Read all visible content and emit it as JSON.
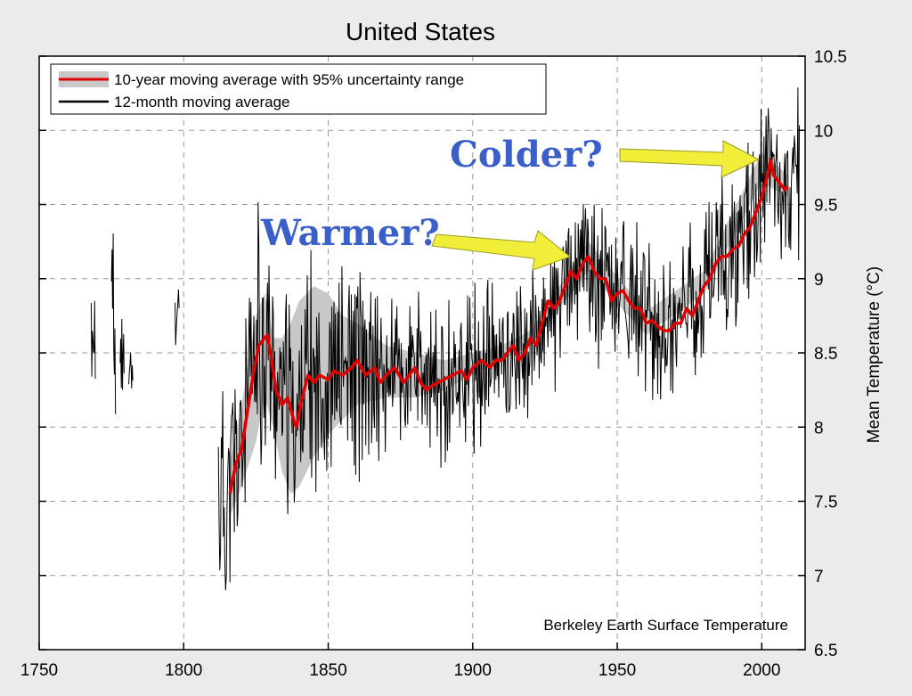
{
  "chart_data": {
    "type": "line",
    "title": "United States",
    "xlabel": "",
    "ylabel": "Mean Temperature (°C)",
    "xlim": [
      1750,
      2015
    ],
    "ylim": [
      6.5,
      10.5
    ],
    "x_ticks": [
      "1750",
      "1800",
      "1850",
      "1900",
      "1950",
      "2000"
    ],
    "y_ticks": [
      "6.5",
      "7",
      "7.5",
      "8",
      "8.5",
      "9",
      "9.5",
      "10",
      "10.5"
    ],
    "grid": true,
    "legend_position": "top-left",
    "credit": "Berkeley Earth Surface Temperature",
    "series": [
      {
        "name": "10-year moving average with 95% uncertainty range",
        "color": "#e00000",
        "x": [
          1816,
          1818,
          1820,
          1822,
          1824,
          1826,
          1828,
          1829,
          1830,
          1832,
          1834,
          1836,
          1838,
          1839,
          1841,
          1843,
          1845,
          1847,
          1850,
          1852,
          1855,
          1858,
          1860,
          1863,
          1866,
          1868,
          1870,
          1873,
          1876,
          1878,
          1880,
          1882,
          1884,
          1886,
          1888,
          1890,
          1893,
          1896,
          1898,
          1900,
          1903,
          1906,
          1908,
          1910,
          1912,
          1914,
          1916,
          1918,
          1920,
          1922,
          1924,
          1926,
          1928,
          1930,
          1932,
          1934,
          1936,
          1938,
          1940,
          1942,
          1944,
          1946,
          1948,
          1950,
          1952,
          1954,
          1956,
          1958,
          1960,
          1962,
          1964,
          1966,
          1968,
          1970,
          1972,
          1974,
          1976,
          1978,
          1980,
          1982,
          1984,
          1986,
          1988,
          1990,
          1992,
          1994,
          1996,
          1998,
          2000,
          2002,
          2003,
          2004,
          2006,
          2008,
          2009
        ],
        "y": [
          7.55,
          7.75,
          7.85,
          8.1,
          8.35,
          8.55,
          8.6,
          8.62,
          8.5,
          8.25,
          8.15,
          8.2,
          8.05,
          8.0,
          8.2,
          8.35,
          8.3,
          8.35,
          8.32,
          8.38,
          8.35,
          8.4,
          8.45,
          8.35,
          8.4,
          8.3,
          8.35,
          8.4,
          8.3,
          8.35,
          8.4,
          8.3,
          8.25,
          8.28,
          8.3,
          8.32,
          8.35,
          8.38,
          8.32,
          8.4,
          8.45,
          8.4,
          8.45,
          8.45,
          8.5,
          8.55,
          8.45,
          8.5,
          8.6,
          8.55,
          8.7,
          8.85,
          8.8,
          8.85,
          8.95,
          9.05,
          9.0,
          9.1,
          9.15,
          9.05,
          9.0,
          9.0,
          8.85,
          8.9,
          8.92,
          8.85,
          8.8,
          8.8,
          8.7,
          8.72,
          8.68,
          8.65,
          8.65,
          8.7,
          8.7,
          8.8,
          8.75,
          8.85,
          8.95,
          9.0,
          9.1,
          9.15,
          9.15,
          9.2,
          9.22,
          9.3,
          9.35,
          9.45,
          9.55,
          9.7,
          9.8,
          9.7,
          9.65,
          9.6,
          9.62
        ]
      },
      {
        "name": "12-month moving average",
        "color": "#000000"
      }
    ],
    "uncertainty_band": {
      "color": "#c8c8c8",
      "x": [
        1816,
        1820,
        1825,
        1828,
        1831,
        1834,
        1837,
        1840,
        1845,
        1850,
        1855,
        1860,
        1870,
        1880,
        1890,
        1900,
        1910,
        1920,
        1930,
        1940,
        1960,
        1980,
        2000,
        2009
      ],
      "lower": [
        7.4,
        7.6,
        7.9,
        8.2,
        8.0,
        7.7,
        7.55,
        7.6,
        7.8,
        7.95,
        8.05,
        8.15,
        8.2,
        8.2,
        8.25,
        8.35,
        8.45,
        8.55,
        8.8,
        9.05,
        8.62,
        8.9,
        9.65,
        9.55
      ],
      "upper": [
        7.75,
        8.15,
        8.75,
        8.9,
        8.6,
        8.6,
        8.7,
        8.85,
        8.95,
        8.9,
        8.75,
        8.7,
        8.55,
        8.5,
        8.45,
        8.5,
        8.55,
        8.65,
        8.95,
        9.25,
        8.78,
        9.05,
        9.85,
        9.7
      ]
    }
  },
  "annotations": {
    "colder_label": "Colder?",
    "warmer_label": "Warmer?",
    "arrow_color": "#f1ee3a"
  }
}
